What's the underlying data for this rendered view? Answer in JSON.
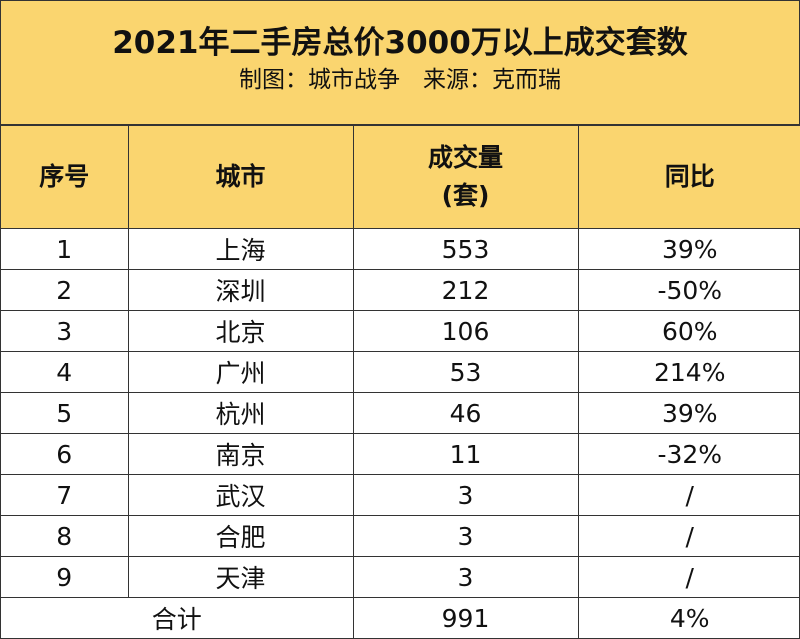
{
  "header": {
    "title": "2021年二手房总价3000万以上成交套数",
    "subtitle": "制图：城市战争　来源：克而瑞"
  },
  "table": {
    "columns": [
      "序号",
      "城市",
      "成交量",
      "同比"
    ],
    "volume_unit": "(套)",
    "rows": [
      [
        1,
        "上海",
        553,
        "39%"
      ],
      [
        2,
        "深圳",
        212,
        "-50%"
      ],
      [
        3,
        "北京",
        106,
        "60%"
      ],
      [
        4,
        "广州",
        53,
        "214%"
      ],
      [
        5,
        "杭州",
        46,
        "39%"
      ],
      [
        6,
        "南京",
        11,
        "-32%"
      ],
      [
        7,
        "武汉",
        3,
        "/"
      ],
      [
        8,
        "合肥",
        3,
        "/"
      ],
      [
        9,
        "天津",
        3,
        "/"
      ]
    ],
    "total": {
      "label": "合计",
      "volume": 991,
      "change": "4%"
    }
  }
}
